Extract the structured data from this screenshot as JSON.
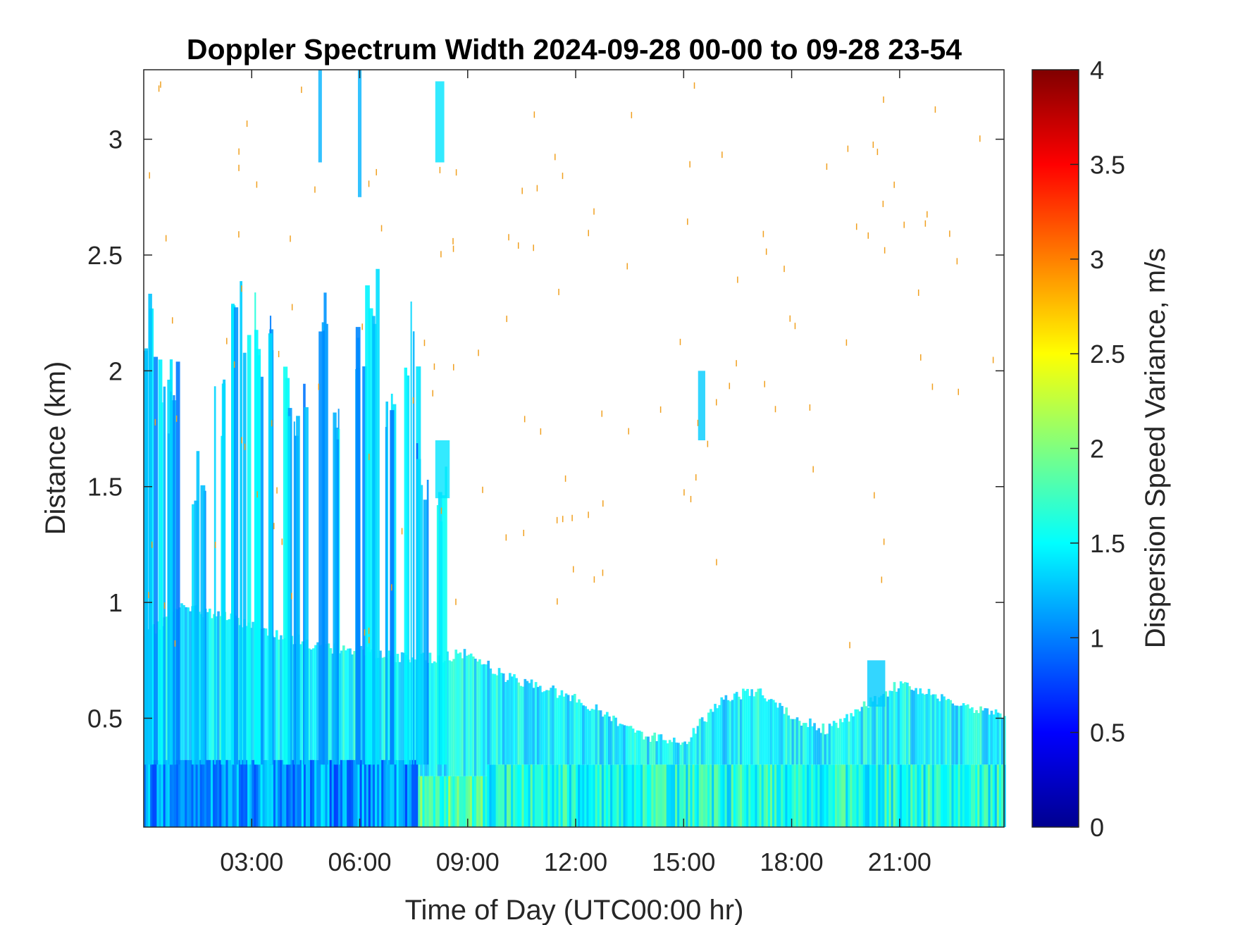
{
  "chart_data": {
    "type": "heatmap",
    "title": "Doppler Spectrum Width 2024-09-28 00-00 to 09-28 23-54",
    "xlabel": "Time of Day (UTC00:00 hr)",
    "ylabel": "Distance (km)",
    "xlim": [
      0,
      23.9
    ],
    "ylim": [
      0.03,
      3.3
    ],
    "x_ticks": [
      {
        "value": 3,
        "label": "03:00"
      },
      {
        "value": 6,
        "label": "06:00"
      },
      {
        "value": 9,
        "label": "09:00"
      },
      {
        "value": 12,
        "label": "12:00"
      },
      {
        "value": 15,
        "label": "15:00"
      },
      {
        "value": 18,
        "label": "18:00"
      },
      {
        "value": 21,
        "label": "21:00"
      }
    ],
    "y_ticks": [
      {
        "value": 0.5,
        "label": "0.5"
      },
      {
        "value": 1,
        "label": "1"
      },
      {
        "value": 1.5,
        "label": "1.5"
      },
      {
        "value": 2,
        "label": "2"
      },
      {
        "value": 2.5,
        "label": "2.5"
      },
      {
        "value": 3,
        "label": "3"
      }
    ],
    "colorbar": {
      "label": "Dispersion Speed Variance, m/s",
      "colormap": "jet",
      "range": [
        0,
        4
      ],
      "ticks": [
        {
          "value": 0,
          "label": "0"
        },
        {
          "value": 0.5,
          "label": "0.5"
        },
        {
          "value": 1,
          "label": "1"
        },
        {
          "value": 1.5,
          "label": "1.5"
        },
        {
          "value": 2,
          "label": "2"
        },
        {
          "value": 2.5,
          "label": "2.5"
        },
        {
          "value": 3,
          "label": "3"
        },
        {
          "value": 3.5,
          "label": "3.5"
        },
        {
          "value": 4,
          "label": "4"
        }
      ]
    },
    "grid": false,
    "layers": [
      {
        "x_range": [
          0,
          7.6
        ],
        "top_km": 0.32,
        "value": 1.1
      },
      {
        "x_range": [
          7.6,
          9.5
        ],
        "top_km": 0.25,
        "value": 1.8
      },
      {
        "x_range": [
          9.5,
          23.9
        ],
        "top_km": 0.3,
        "value": 1.6
      }
    ],
    "boundary_layer": [
      {
        "x": 0.0,
        "top": 0.85
      },
      {
        "x": 1.0,
        "top": 0.98
      },
      {
        "x": 2.0,
        "top": 0.95
      },
      {
        "x": 3.0,
        "top": 0.9
      },
      {
        "x": 4.0,
        "top": 0.85
      },
      {
        "x": 5.0,
        "top": 0.8
      },
      {
        "x": 6.0,
        "top": 0.8
      },
      {
        "x": 7.0,
        "top": 0.76
      },
      {
        "x": 8.0,
        "top": 0.76
      },
      {
        "x": 9.0,
        "top": 0.78
      },
      {
        "x": 10.0,
        "top": 0.68
      },
      {
        "x": 11.0,
        "top": 0.64
      },
      {
        "x": 12.0,
        "top": 0.58
      },
      {
        "x": 13.0,
        "top": 0.5
      },
      {
        "x": 14.0,
        "top": 0.42
      },
      {
        "x": 15.0,
        "top": 0.4
      },
      {
        "x": 16.0,
        "top": 0.58
      },
      {
        "x": 17.0,
        "top": 0.62
      },
      {
        "x": 18.0,
        "top": 0.5
      },
      {
        "x": 19.0,
        "top": 0.45
      },
      {
        "x": 20.0,
        "top": 0.55
      },
      {
        "x": 21.0,
        "top": 0.65
      },
      {
        "x": 22.0,
        "top": 0.6
      },
      {
        "x": 23.0,
        "top": 0.55
      },
      {
        "x": 23.9,
        "top": 0.5
      }
    ],
    "plumes": [
      {
        "x": 0.1,
        "top_km": 2.35,
        "value": 1.2
      },
      {
        "x": 0.5,
        "top_km": 2.05,
        "value": 1.3
      },
      {
        "x": 0.8,
        "top_km": 2.05,
        "value": 1.2
      },
      {
        "x": 1.5,
        "top_km": 1.75,
        "value": 1.2
      },
      {
        "x": 2.1,
        "top_km": 2.05,
        "value": 1.3
      },
      {
        "x": 2.6,
        "top_km": 2.4,
        "value": 1.3
      },
      {
        "x": 3.0,
        "top_km": 2.4,
        "value": 1.4
      },
      {
        "x": 3.4,
        "top_km": 2.3,
        "value": 1.2
      },
      {
        "x": 3.9,
        "top_km": 2.05,
        "value": 1.3
      },
      {
        "x": 4.3,
        "top_km": 2.0,
        "value": 1.2
      },
      {
        "x": 4.9,
        "top_km": 2.35,
        "value": 1.2
      },
      {
        "x": 5.4,
        "top_km": 2.0,
        "value": 1.3
      },
      {
        "x": 5.9,
        "top_km": 2.25,
        "value": 1.2
      },
      {
        "x": 6.3,
        "top_km": 2.45,
        "value": 1.3
      },
      {
        "x": 6.8,
        "top_km": 1.95,
        "value": 1.2
      },
      {
        "x": 7.4,
        "top_km": 2.3,
        "value": 1.3
      },
      {
        "x": 7.7,
        "top_km": 1.7,
        "value": 1.1
      },
      {
        "x": 8.2,
        "top_km": 1.65,
        "value": 1.4
      }
    ],
    "clouds": [
      {
        "x_range": [
          4.85,
          4.95
        ],
        "km_range": [
          2.9,
          3.3
        ],
        "value": 1.2
      },
      {
        "x_range": [
          5.95,
          6.05
        ],
        "km_range": [
          2.75,
          3.3
        ],
        "value": 1.2
      },
      {
        "x_range": [
          8.1,
          8.35
        ],
        "km_range": [
          2.9,
          3.25
        ],
        "value": 1.4
      },
      {
        "x_range": [
          8.1,
          8.5
        ],
        "km_range": [
          1.45,
          1.7
        ],
        "value": 1.4
      },
      {
        "x_range": [
          15.4,
          15.6
        ],
        "km_range": [
          1.7,
          2.0
        ],
        "value": 1.3
      },
      {
        "x_range": [
          20.1,
          20.6
        ],
        "km_range": [
          0.55,
          0.75
        ],
        "value": 1.3
      }
    ]
  }
}
